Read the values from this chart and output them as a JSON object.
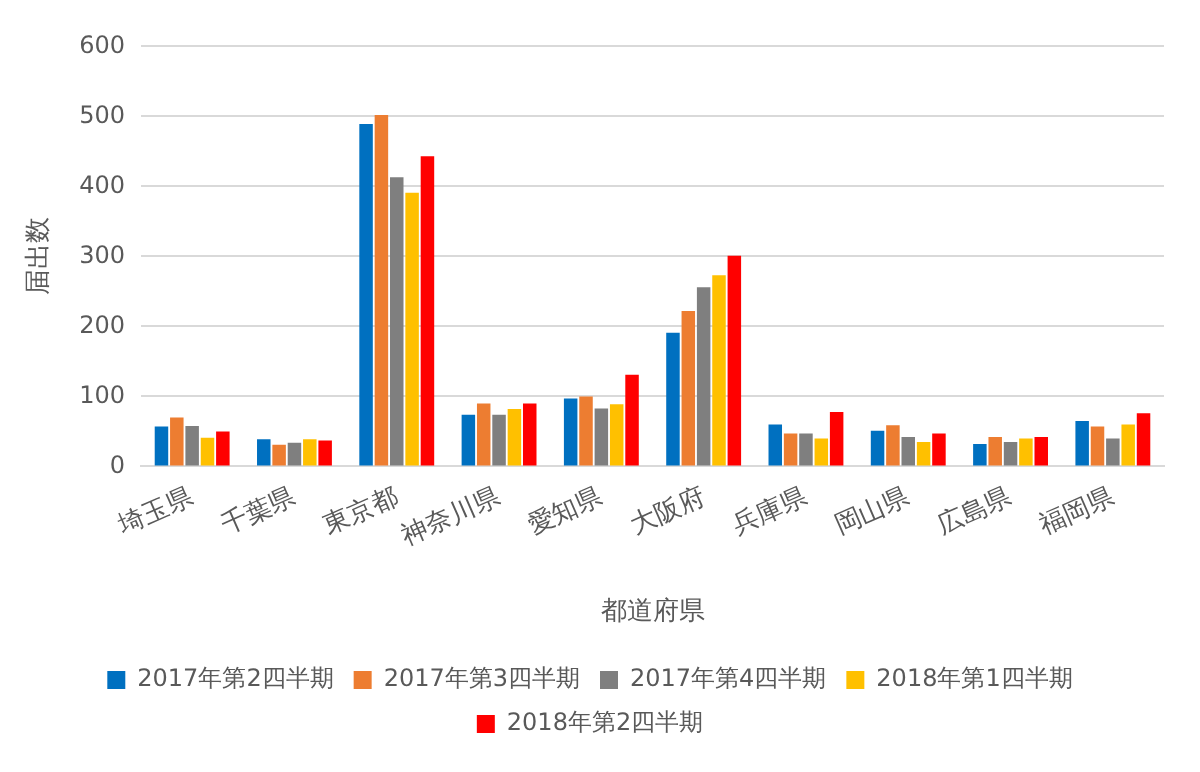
{
  "chart_data": {
    "type": "bar",
    "xlabel": "都道府県",
    "ylabel": "届出数",
    "categories": [
      "埼玉県",
      "千葉県",
      "東京都",
      "神奈川県",
      "愛知県",
      "大阪府",
      "兵庫県",
      "岡山県",
      "広島県",
      "福岡県"
    ],
    "series": [
      {
        "name": "2017年第2四半期",
        "color": "#0070c0",
        "values": [
          57,
          39,
          489,
          74,
          97,
          191,
          60,
          51,
          32,
          65
        ]
      },
      {
        "name": "2017年第3四半期",
        "color": "#ed7d31",
        "values": [
          70,
          31,
          502,
          90,
          100,
          222,
          47,
          59,
          42,
          57
        ]
      },
      {
        "name": "2017年第4四半期",
        "color": "#7f7f7f",
        "values": [
          58,
          34,
          413,
          74,
          83,
          256,
          47,
          42,
          35,
          40
        ]
      },
      {
        "name": "2018年第1四半期",
        "color": "#ffc000",
        "values": [
          41,
          39,
          391,
          82,
          89,
          273,
          40,
          35,
          40,
          60
        ]
      },
      {
        "name": "2018年第2四半期",
        "color": "#ff0000",
        "values": [
          50,
          37,
          443,
          90,
          131,
          301,
          78,
          47,
          42,
          76
        ]
      }
    ],
    "ylim": [
      0,
      600
    ],
    "yticks": [
      0,
      100,
      200,
      300,
      400,
      500,
      600
    ],
    "grid": "y",
    "legend": "bottom"
  }
}
